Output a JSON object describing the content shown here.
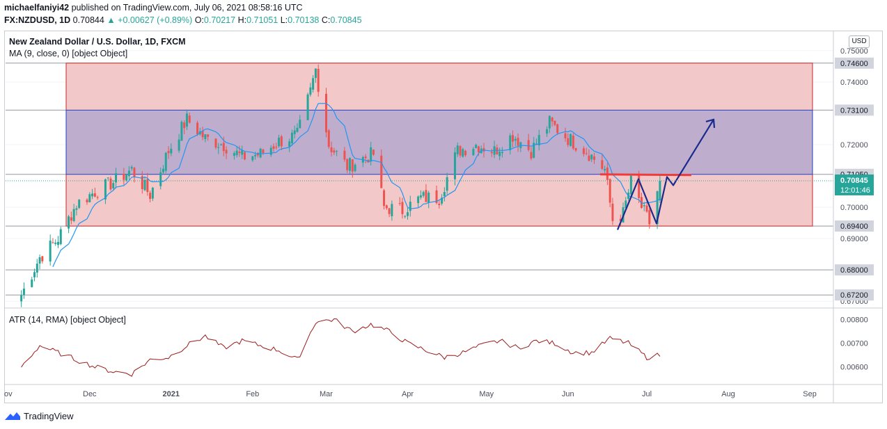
{
  "header": {
    "publisher": "michaelfaniyi42",
    "published_text": "published on TradingView.com, July 06, 2021 08:58:16 UTC"
  },
  "quote": {
    "symbol": "FX:NZDUSD, 1D",
    "last": "0.70844",
    "change": "+0.00627 (+0.89%)",
    "open_label": "O:",
    "open": "0.70217",
    "high_label": "H:",
    "high": "0.71051",
    "low_label": "L:",
    "low": "0.70138",
    "close_label": "C:",
    "close": "0.70845"
  },
  "footer": {
    "brand": "TradingView"
  },
  "colors": {
    "up": "#26a69a",
    "down": "#ef5350",
    "ma": "#2196f3",
    "atr": "#9c1a1a",
    "zone_fill": "#f3c8c8",
    "zone_border": "#c62828",
    "inner_fill": "#b4a8cc",
    "inner_border": "#1e40c8",
    "resistance": "#ef3b3b",
    "projection": "#1a2a8c",
    "axis_label_bg": "#d1d4dc",
    "last_price_bg": "#26a69a"
  },
  "chart_data": [
    {
      "type": "candlestick",
      "title": "New Zealand Dollar / U.S. Dollar, 1D, FXCM",
      "indicator_label": "MA (9, close, 0) [object Object]",
      "currency_button": "USD",
      "x_ticks": [
        "ov",
        "Dec",
        "2021",
        "Feb",
        "Mar",
        "Apr",
        "May",
        "Jun",
        "Jul",
        "Aug",
        "Sep"
      ],
      "y_ticks": [
        "0.75000",
        "0.74000",
        "0.72000",
        "0.70000",
        "0.69000",
        "0.68000",
        "0.67000"
      ],
      "ylim": [
        0.6685,
        0.7515
      ],
      "price_levels": [
        "0.74600",
        "0.73100",
        "0.71050",
        "0.69400",
        "0.68000",
        "0.67200"
      ],
      "last_price": "0.70845",
      "countdown": "12:01:46",
      "zones": [
        {
          "name": "outer-range",
          "from": 0.694,
          "to": 0.746
        },
        {
          "name": "inner-range",
          "from": 0.7105,
          "to": 0.731
        }
      ],
      "resistance_line": 0.7105,
      "close_path": [
        [
          "2020-11-05",
          0.672
        ],
        [
          "2020-11-12",
          0.684
        ],
        [
          "2020-11-19",
          0.69
        ],
        [
          "2020-11-26",
          0.701
        ],
        [
          "2020-12-03",
          0.705
        ],
        [
          "2020-12-10",
          0.708
        ],
        [
          "2020-12-17",
          0.712
        ],
        [
          "2020-12-24",
          0.704
        ],
        [
          "2020-12-31",
          0.718
        ],
        [
          "2021-01-07",
          0.728
        ],
        [
          "2021-01-14",
          0.722
        ],
        [
          "2021-01-21",
          0.72
        ],
        [
          "2021-01-28",
          0.716
        ],
        [
          "2021-02-04",
          0.717
        ],
        [
          "2021-02-11",
          0.721
        ],
        [
          "2021-02-18",
          0.723
        ],
        [
          "2021-02-23",
          0.737
        ],
        [
          "2021-02-25",
          0.744
        ],
        [
          "2021-03-02",
          0.72
        ],
        [
          "2021-03-09",
          0.713
        ],
        [
          "2021-03-16",
          0.716
        ],
        [
          "2021-03-19",
          0.717
        ],
        [
          "2021-03-23",
          0.7
        ],
        [
          "2021-03-30",
          0.699
        ],
        [
          "2021-04-06",
          0.703
        ],
        [
          "2021-04-13",
          0.703
        ],
        [
          "2021-04-20",
          0.718
        ],
        [
          "2021-04-27",
          0.72
        ],
        [
          "2021-05-04",
          0.718
        ],
        [
          "2021-05-11",
          0.723
        ],
        [
          "2021-05-18",
          0.718
        ],
        [
          "2021-05-25",
          0.727
        ],
        [
          "2021-06-01",
          0.722
        ],
        [
          "2021-06-08",
          0.718
        ],
        [
          "2021-06-15",
          0.712
        ],
        [
          "2021-06-18",
          0.696
        ],
        [
          "2021-06-22",
          0.698
        ],
        [
          "2021-06-25",
          0.708
        ],
        [
          "2021-06-29",
          0.7
        ],
        [
          "2021-07-02",
          0.695
        ],
        [
          "2021-07-06",
          0.7085
        ]
      ]
    },
    {
      "type": "line",
      "indicator_label": "ATR (14, RMA) [object Object]",
      "y_ticks": [
        "0.00800",
        "0.00700",
        "0.00600"
      ],
      "ylim": [
        0.0054,
        0.0084
      ],
      "atr_path": [
        [
          "2020-11-05",
          0.006
        ],
        [
          "2020-11-12",
          0.0069
        ],
        [
          "2020-11-19",
          0.0066
        ],
        [
          "2020-11-26",
          0.0063
        ],
        [
          "2020-12-03",
          0.006
        ],
        [
          "2020-12-10",
          0.0058
        ],
        [
          "2020-12-17",
          0.0057
        ],
        [
          "2020-12-24",
          0.0063
        ],
        [
          "2020-12-31",
          0.0064
        ],
        [
          "2021-01-07",
          0.0069
        ],
        [
          "2021-01-14",
          0.0073
        ],
        [
          "2021-01-21",
          0.0068
        ],
        [
          "2021-01-28",
          0.0071
        ],
        [
          "2021-02-04",
          0.0069
        ],
        [
          "2021-02-11",
          0.0067
        ],
        [
          "2021-02-18",
          0.0063
        ],
        [
          "2021-02-25",
          0.0079
        ],
        [
          "2021-03-04",
          0.008
        ],
        [
          "2021-03-11",
          0.0075
        ],
        [
          "2021-03-18",
          0.0078
        ],
        [
          "2021-03-25",
          0.0075
        ],
        [
          "2021-04-01",
          0.007
        ],
        [
          "2021-04-08",
          0.0067
        ],
        [
          "2021-04-15",
          0.0064
        ],
        [
          "2021-04-22",
          0.0066
        ],
        [
          "2021-04-29",
          0.0069
        ],
        [
          "2021-05-06",
          0.0071
        ],
        [
          "2021-05-13",
          0.0068
        ],
        [
          "2021-05-20",
          0.0071
        ],
        [
          "2021-05-27",
          0.007
        ],
        [
          "2021-06-03",
          0.0066
        ],
        [
          "2021-06-10",
          0.0066
        ],
        [
          "2021-06-17",
          0.0072
        ],
        [
          "2021-06-24",
          0.007
        ],
        [
          "2021-07-01",
          0.0064
        ],
        [
          "2021-07-06",
          0.0065
        ]
      ]
    }
  ]
}
